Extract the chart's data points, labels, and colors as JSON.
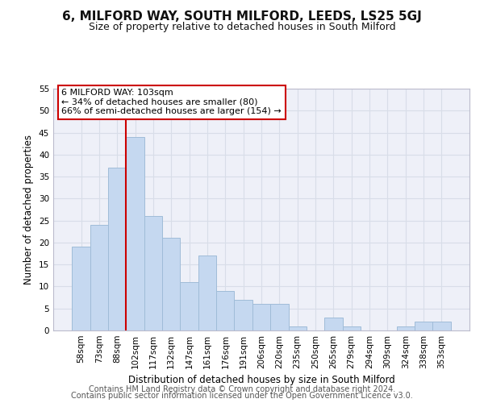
{
  "title": "6, MILFORD WAY, SOUTH MILFORD, LEEDS, LS25 5GJ",
  "subtitle": "Size of property relative to detached houses in South Milford",
  "xlabel": "Distribution of detached houses by size in South Milford",
  "ylabel": "Number of detached properties",
  "bar_labels": [
    "58sqm",
    "73sqm",
    "88sqm",
    "102sqm",
    "117sqm",
    "132sqm",
    "147sqm",
    "161sqm",
    "176sqm",
    "191sqm",
    "206sqm",
    "220sqm",
    "235sqm",
    "250sqm",
    "265sqm",
    "279sqm",
    "294sqm",
    "309sqm",
    "324sqm",
    "338sqm",
    "353sqm"
  ],
  "bar_values": [
    19,
    24,
    37,
    44,
    26,
    21,
    11,
    17,
    9,
    7,
    6,
    6,
    1,
    0,
    3,
    1,
    0,
    0,
    1,
    2,
    2
  ],
  "bar_color": "#c5d8f0",
  "bar_edge_color": "#a0bcd8",
  "marker_index": 3,
  "marker_line_color": "#cc0000",
  "annotation_title": "6 MILFORD WAY: 103sqm",
  "annotation_line1": "← 34% of detached houses are smaller (80)",
  "annotation_line2": "66% of semi-detached houses are larger (154) →",
  "annotation_box_color": "#ffffff",
  "annotation_box_edge_color": "#cc0000",
  "ylim": [
    0,
    55
  ],
  "yticks": [
    0,
    5,
    10,
    15,
    20,
    25,
    30,
    35,
    40,
    45,
    50,
    55
  ],
  "grid_color": "#d8dde8",
  "bg_color": "#eef0f8",
  "footer_line1": "Contains HM Land Registry data © Crown copyright and database right 2024.",
  "footer_line2": "Contains public sector information licensed under the Open Government Licence v3.0.",
  "title_fontsize": 11,
  "subtitle_fontsize": 9,
  "xlabel_fontsize": 8.5,
  "ylabel_fontsize": 8.5,
  "tick_fontsize": 7.5,
  "footer_fontsize": 7,
  "annotation_fontsize": 8
}
